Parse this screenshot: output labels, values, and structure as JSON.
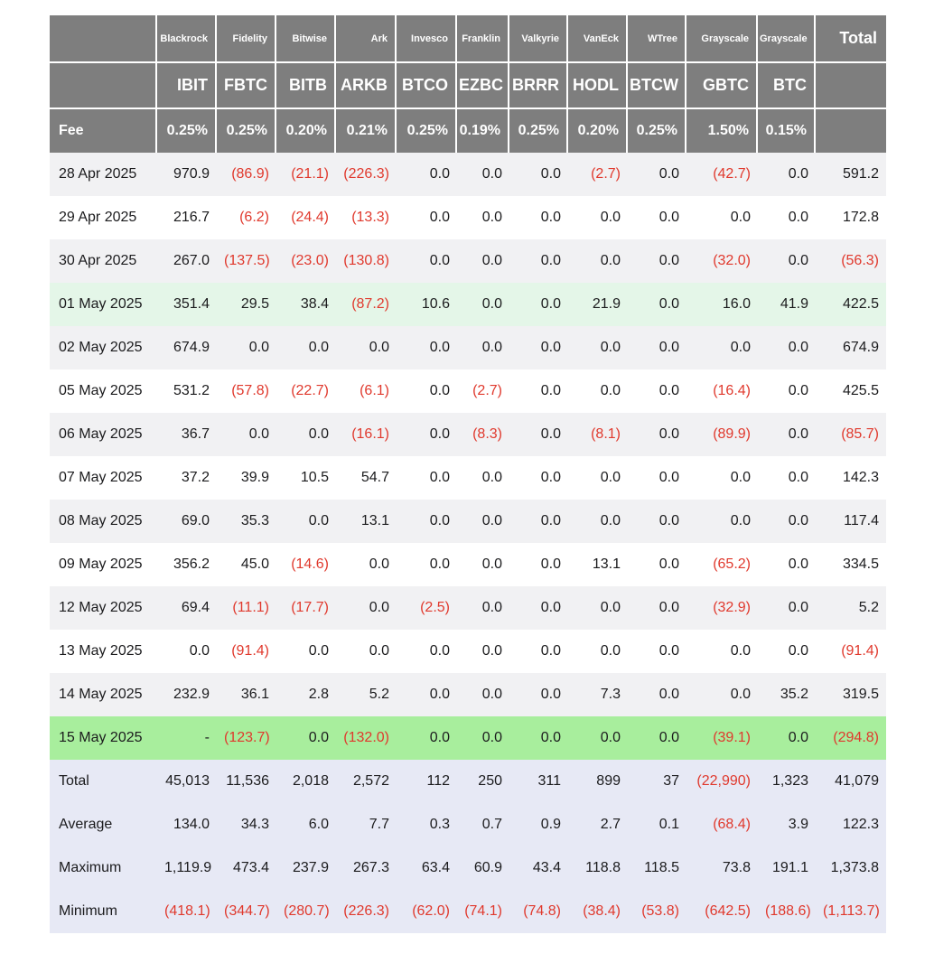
{
  "chart_data": {
    "type": "table",
    "fee_label": "Fee",
    "total_label": "Total",
    "columns": [
      {
        "firm": "Blackrock",
        "ticker": "IBIT",
        "fee": "0.25%"
      },
      {
        "firm": "Fidelity",
        "ticker": "FBTC",
        "fee": "0.25%"
      },
      {
        "firm": "Bitwise",
        "ticker": "BITB",
        "fee": "0.20%"
      },
      {
        "firm": "Ark",
        "ticker": "ARKB",
        "fee": "0.21%"
      },
      {
        "firm": "Invesco",
        "ticker": "BTCO",
        "fee": "0.25%"
      },
      {
        "firm": "Franklin",
        "ticker": "EZBC",
        "fee": "0.19%"
      },
      {
        "firm": "Valkyrie",
        "ticker": "BRRR",
        "fee": "0.25%"
      },
      {
        "firm": "VanEck",
        "ticker": "HODL",
        "fee": "0.20%"
      },
      {
        "firm": "WTree",
        "ticker": "BTCW",
        "fee": "0.25%"
      },
      {
        "firm": "Grayscale",
        "ticker": "GBTC",
        "fee": "1.50%"
      },
      {
        "firm": "Grayscale",
        "ticker": "BTC",
        "fee": "0.15%"
      }
    ],
    "rows": [
      {
        "date": "28 Apr 2025",
        "values": [
          "970.9",
          "(86.9)",
          "(21.1)",
          "(226.3)",
          "0.0",
          "0.0",
          "0.0",
          "(2.7)",
          "0.0",
          "(42.7)",
          "0.0"
        ],
        "total": "591.2",
        "highlight": null
      },
      {
        "date": "29 Apr 2025",
        "values": [
          "216.7",
          "(6.2)",
          "(24.4)",
          "(13.3)",
          "0.0",
          "0.0",
          "0.0",
          "0.0",
          "0.0",
          "0.0",
          "0.0"
        ],
        "total": "172.8",
        "highlight": null
      },
      {
        "date": "30 Apr 2025",
        "values": [
          "267.0",
          "(137.5)",
          "(23.0)",
          "(130.8)",
          "0.0",
          "0.0",
          "0.0",
          "0.0",
          "0.0",
          "(32.0)",
          "0.0"
        ],
        "total": "(56.3)",
        "highlight": null
      },
      {
        "date": "01 May 2025",
        "values": [
          "351.4",
          "29.5",
          "38.4",
          "(87.2)",
          "10.6",
          "0.0",
          "0.0",
          "21.9",
          "0.0",
          "16.0",
          "41.9"
        ],
        "total": "422.5",
        "highlight": "pale-green"
      },
      {
        "date": "02 May 2025",
        "values": [
          "674.9",
          "0.0",
          "0.0",
          "0.0",
          "0.0",
          "0.0",
          "0.0",
          "0.0",
          "0.0",
          "0.0",
          "0.0"
        ],
        "total": "674.9",
        "highlight": null
      },
      {
        "date": "05 May 2025",
        "values": [
          "531.2",
          "(57.8)",
          "(22.7)",
          "(6.1)",
          "0.0",
          "(2.7)",
          "0.0",
          "0.0",
          "0.0",
          "(16.4)",
          "0.0"
        ],
        "total": "425.5",
        "highlight": null
      },
      {
        "date": "06 May 2025",
        "values": [
          "36.7",
          "0.0",
          "0.0",
          "(16.1)",
          "0.0",
          "(8.3)",
          "0.0",
          "(8.1)",
          "0.0",
          "(89.9)",
          "0.0"
        ],
        "total": "(85.7)",
        "highlight": null
      },
      {
        "date": "07 May 2025",
        "values": [
          "37.2",
          "39.9",
          "10.5",
          "54.7",
          "0.0",
          "0.0",
          "0.0",
          "0.0",
          "0.0",
          "0.0",
          "0.0"
        ],
        "total": "142.3",
        "highlight": null
      },
      {
        "date": "08 May 2025",
        "values": [
          "69.0",
          "35.3",
          "0.0",
          "13.1",
          "0.0",
          "0.0",
          "0.0",
          "0.0",
          "0.0",
          "0.0",
          "0.0"
        ],
        "total": "117.4",
        "highlight": null
      },
      {
        "date": "09 May 2025",
        "values": [
          "356.2",
          "45.0",
          "(14.6)",
          "0.0",
          "0.0",
          "0.0",
          "0.0",
          "13.1",
          "0.0",
          "(65.2)",
          "0.0"
        ],
        "total": "334.5",
        "highlight": null
      },
      {
        "date": "12 May 2025",
        "values": [
          "69.4",
          "(11.1)",
          "(17.7)",
          "0.0",
          "(2.5)",
          "0.0",
          "0.0",
          "0.0",
          "0.0",
          "(32.9)",
          "0.0"
        ],
        "total": "5.2",
        "highlight": null
      },
      {
        "date": "13 May 2025",
        "values": [
          "0.0",
          "(91.4)",
          "0.0",
          "0.0",
          "0.0",
          "0.0",
          "0.0",
          "0.0",
          "0.0",
          "0.0",
          "0.0"
        ],
        "total": "(91.4)",
        "highlight": null
      },
      {
        "date": "14 May 2025",
        "values": [
          "232.9",
          "36.1",
          "2.8",
          "5.2",
          "0.0",
          "0.0",
          "0.0",
          "7.3",
          "0.0",
          "0.0",
          "35.2"
        ],
        "total": "319.5",
        "highlight": null
      },
      {
        "date": "15 May 2025",
        "values": [
          "-",
          "(123.7)",
          "0.0",
          "(132.0)",
          "0.0",
          "0.0",
          "0.0",
          "0.0",
          "0.0",
          "(39.1)",
          "0.0"
        ],
        "total": "(294.8)",
        "highlight": "bright-green"
      }
    ],
    "summary_rows": [
      {
        "label": "Total",
        "values": [
          "45,013",
          "11,536",
          "2,018",
          "2,572",
          "112",
          "250",
          "311",
          "899",
          "37",
          "(22,990)",
          "1,323"
        ],
        "total": "41,079"
      },
      {
        "label": "Average",
        "values": [
          "134.0",
          "34.3",
          "6.0",
          "7.7",
          "0.3",
          "0.7",
          "0.9",
          "2.7",
          "0.1",
          "(68.4)",
          "3.9"
        ],
        "total": "122.3"
      },
      {
        "label": "Maximum",
        "values": [
          "1,119.9",
          "473.4",
          "237.9",
          "267.3",
          "63.4",
          "60.9",
          "43.4",
          "118.8",
          "118.5",
          "73.8",
          "191.1"
        ],
        "total": "1,373.8"
      },
      {
        "label": "Minimum",
        "values": [
          "(418.1)",
          "(344.7)",
          "(280.7)",
          "(226.3)",
          "(62.0)",
          "(74.1)",
          "(74.8)",
          "(38.4)",
          "(53.8)",
          "(642.5)",
          "(188.6)"
        ],
        "total": "(1,113.7)"
      }
    ]
  },
  "colors": {
    "header_bg": "#7e7e7e",
    "header_text": "#ffffff",
    "body_text": "#1b1b1d",
    "negative_text": "#e0392d",
    "stripe_row_bg": "#f1f1f3",
    "pale_green_row_bg": "#e4f6e8",
    "bright_green_row_bg": "#a8ee9d",
    "summary_row_bg": "#e7e9f5"
  }
}
